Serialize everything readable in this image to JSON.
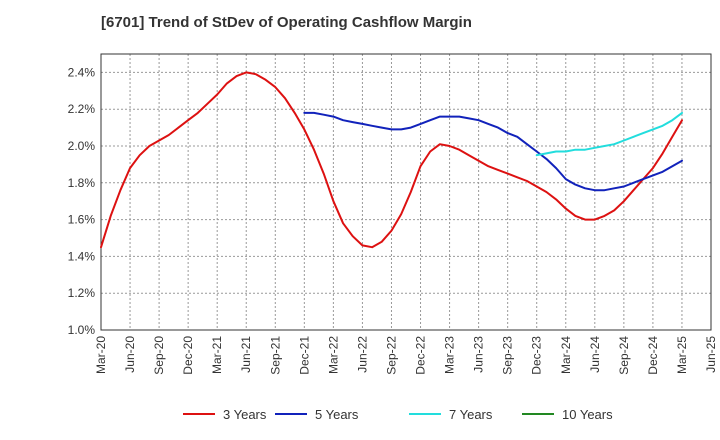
{
  "chart_data": {
    "type": "line",
    "title": "[6701]  Trend of StDev of Operating Cashflow Margin",
    "xlabel": "",
    "ylabel": "",
    "x_ticks": [
      "Mar-20",
      "Jun-20",
      "Sep-20",
      "Dec-20",
      "Mar-21",
      "Jun-21",
      "Sep-21",
      "Dec-21",
      "Mar-22",
      "Jun-22",
      "Sep-22",
      "Dec-22",
      "Mar-23",
      "Jun-23",
      "Sep-23",
      "Dec-23",
      "Mar-24",
      "Jun-24",
      "Sep-24",
      "Dec-24",
      "Mar-25",
      "Jun-25"
    ],
    "y_ticks": [
      "1.0%",
      "1.2%",
      "1.4%",
      "1.6%",
      "1.8%",
      "2.0%",
      "2.2%",
      "2.4%"
    ],
    "ylim": [
      1.0,
      2.5
    ],
    "grid": true,
    "legend_position": "bottom",
    "series": [
      {
        "name": "3 Years",
        "color": "#dd1111",
        "x": [
          "Mar-20",
          "Apr-20",
          "May-20",
          "Jun-20",
          "Jul-20",
          "Aug-20",
          "Sep-20",
          "Oct-20",
          "Nov-20",
          "Dec-20",
          "Jan-21",
          "Feb-21",
          "Mar-21",
          "Apr-21",
          "May-21",
          "Jun-21",
          "Jul-21",
          "Aug-21",
          "Sep-21",
          "Oct-21",
          "Nov-21",
          "Dec-21",
          "Jan-22",
          "Feb-22",
          "Mar-22",
          "Apr-22",
          "May-22",
          "Jun-22",
          "Jul-22",
          "Aug-22",
          "Sep-22",
          "Oct-22",
          "Nov-22",
          "Dec-22",
          "Jan-23",
          "Feb-23",
          "Mar-23",
          "Apr-23",
          "May-23",
          "Jun-23",
          "Jul-23",
          "Aug-23",
          "Sep-23",
          "Oct-23",
          "Nov-23",
          "Dec-23",
          "Jan-24",
          "Feb-24",
          "Mar-24",
          "Apr-24",
          "May-24",
          "Jun-24",
          "Jul-24",
          "Aug-24",
          "Sep-24",
          "Oct-24",
          "Nov-24",
          "Dec-24",
          "Jan-25",
          "Feb-25",
          "Mar-25"
        ],
        "values": [
          1.45,
          1.62,
          1.76,
          1.88,
          1.95,
          2.0,
          2.03,
          2.06,
          2.1,
          2.14,
          2.18,
          2.23,
          2.28,
          2.34,
          2.38,
          2.4,
          2.39,
          2.36,
          2.32,
          2.26,
          2.18,
          2.09,
          1.98,
          1.85,
          1.7,
          1.58,
          1.51,
          1.46,
          1.45,
          1.48,
          1.54,
          1.63,
          1.75,
          1.89,
          1.97,
          2.01,
          2.0,
          1.98,
          1.95,
          1.92,
          1.89,
          1.87,
          1.85,
          1.83,
          1.81,
          1.78,
          1.75,
          1.71,
          1.66,
          1.62,
          1.6,
          1.6,
          1.62,
          1.65,
          1.7,
          1.76,
          1.82,
          1.88,
          1.96,
          2.05,
          2.14
        ]
      },
      {
        "name": "5 Years",
        "color": "#1122bb",
        "x": [
          "Dec-21",
          "Jan-22",
          "Feb-22",
          "Mar-22",
          "Apr-22",
          "May-22",
          "Jun-22",
          "Jul-22",
          "Aug-22",
          "Sep-22",
          "Oct-22",
          "Nov-22",
          "Dec-22",
          "Jan-23",
          "Feb-23",
          "Mar-23",
          "Apr-23",
          "May-23",
          "Jun-23",
          "Jul-23",
          "Aug-23",
          "Sep-23",
          "Oct-23",
          "Nov-23",
          "Dec-23",
          "Jan-24",
          "Feb-24",
          "Mar-24",
          "Apr-24",
          "May-24",
          "Jun-24",
          "Jul-24",
          "Aug-24",
          "Sep-24",
          "Oct-24",
          "Nov-24",
          "Dec-24",
          "Jan-25",
          "Feb-25",
          "Mar-25"
        ],
        "values": [
          2.18,
          2.18,
          2.17,
          2.16,
          2.14,
          2.13,
          2.12,
          2.11,
          2.1,
          2.09,
          2.09,
          2.1,
          2.12,
          2.14,
          2.16,
          2.16,
          2.16,
          2.15,
          2.14,
          2.12,
          2.1,
          2.07,
          2.05,
          2.01,
          1.97,
          1.93,
          1.88,
          1.82,
          1.79,
          1.77,
          1.76,
          1.76,
          1.77,
          1.78,
          1.8,
          1.82,
          1.84,
          1.86,
          1.89,
          1.92
        ]
      },
      {
        "name": "7 Years",
        "color": "#22dddd",
        "x": [
          "Dec-23",
          "Jan-24",
          "Feb-24",
          "Mar-24",
          "Apr-24",
          "May-24",
          "Jun-24",
          "Jul-24",
          "Aug-24",
          "Sep-24",
          "Oct-24",
          "Nov-24",
          "Dec-24",
          "Jan-25",
          "Feb-25",
          "Mar-25"
        ],
        "values": [
          1.95,
          1.96,
          1.97,
          1.97,
          1.98,
          1.98,
          1.99,
          2.0,
          2.01,
          2.03,
          2.05,
          2.07,
          2.09,
          2.11,
          2.14,
          2.18
        ]
      },
      {
        "name": "10 Years",
        "color": "#228822",
        "x": [],
        "values": []
      }
    ]
  }
}
